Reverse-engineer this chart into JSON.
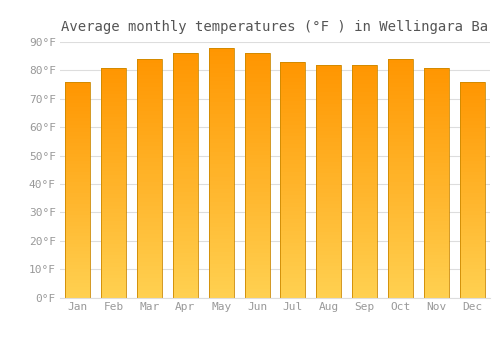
{
  "title": "Average monthly temperatures (°F ) in Wellingara Ba",
  "months": [
    "Jan",
    "Feb",
    "Mar",
    "Apr",
    "May",
    "Jun",
    "Jul",
    "Aug",
    "Sep",
    "Oct",
    "Nov",
    "Dec"
  ],
  "values": [
    76,
    81,
    84,
    86,
    88,
    86,
    83,
    82,
    82,
    84,
    81,
    76
  ],
  "bar_color_bottom": "#FFD060",
  "bar_color_top": "#FFA000",
  "bar_edge_color": "#CC8800",
  "ylim": [
    0,
    90
  ],
  "yticks": [
    0,
    10,
    20,
    30,
    40,
    50,
    60,
    70,
    80,
    90
  ],
  "ytick_labels": [
    "0°F",
    "10°F",
    "20°F",
    "30°F",
    "40°F",
    "50°F",
    "60°F",
    "70°F",
    "80°F",
    "90°F"
  ],
  "background_color": "#FFFFFF",
  "plot_bg_color": "#FFFFFF",
  "grid_color": "#DDDDDD",
  "title_fontsize": 10,
  "tick_fontsize": 8,
  "tick_color": "#999999",
  "bar_width": 0.7
}
